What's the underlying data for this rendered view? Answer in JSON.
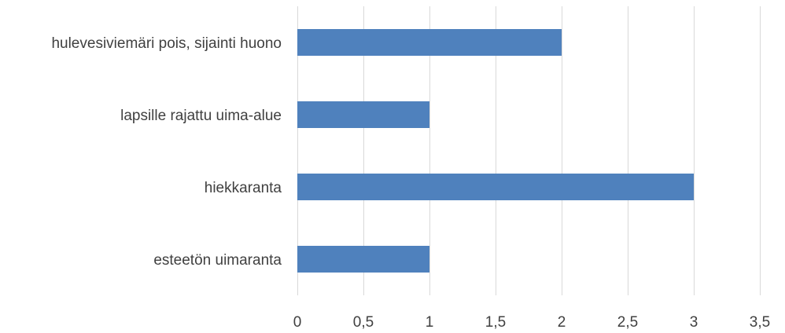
{
  "chart_data": {
    "type": "bar",
    "orientation": "horizontal",
    "categories": [
      "hulevesiviemäri pois, sijainti huono",
      "lapsille rajattu uima-alue",
      "hiekkaranta",
      "esteetön uimaranta"
    ],
    "values": [
      2,
      1,
      3,
      1
    ],
    "xlim": [
      0,
      3.5
    ],
    "xticks": [
      "0",
      "0,5",
      "1",
      "1,5",
      "2",
      "2,5",
      "3",
      "3,5"
    ],
    "xtick_values": [
      0,
      0.5,
      1,
      1.5,
      2,
      2.5,
      3,
      3.5
    ],
    "grid": true,
    "legend": "none",
    "bar_color": "#4f81bd",
    "title": "",
    "xlabel": "",
    "ylabel": ""
  }
}
